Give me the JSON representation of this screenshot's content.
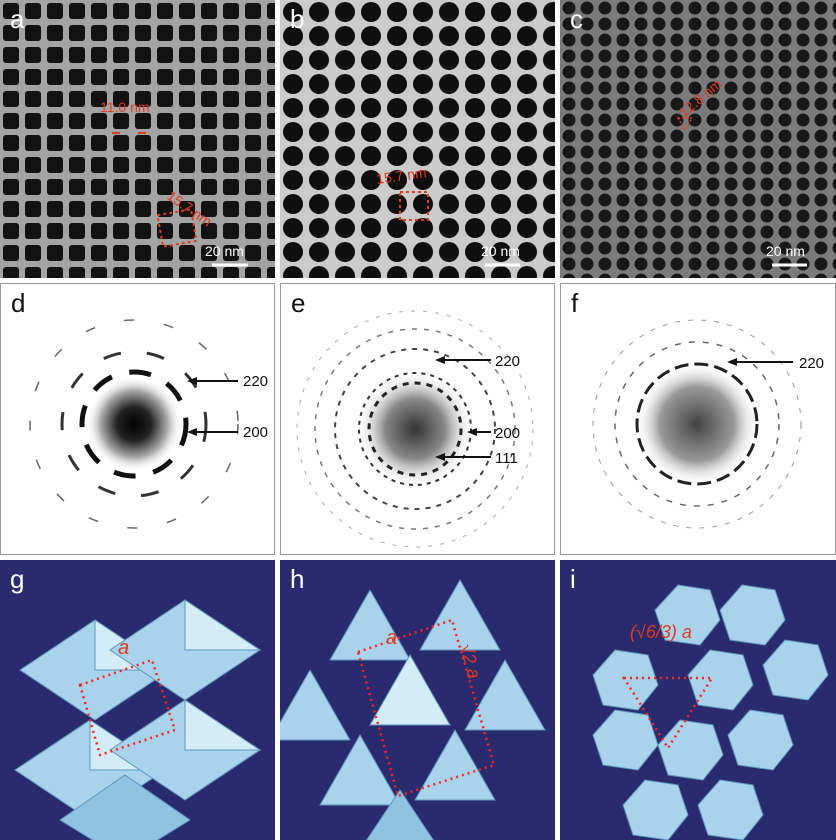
{
  "panels": {
    "a": {
      "label": "a",
      "annotations": [
        "11.0 nm",
        "15.7 nm"
      ],
      "scalebar": "20 nm"
    },
    "b": {
      "label": "b",
      "annotations": [
        "15.7 nm"
      ],
      "scalebar": "20 nm"
    },
    "c": {
      "label": "c",
      "annotations": [
        "12.8 nm"
      ],
      "scalebar": "20 nm"
    },
    "d": {
      "label": "d",
      "rings": [
        "220",
        "200"
      ]
    },
    "e": {
      "label": "e",
      "rings": [
        "220",
        "200",
        "111"
      ]
    },
    "f": {
      "label": "f",
      "rings": [
        "220"
      ]
    },
    "g": {
      "label": "g",
      "param": "a"
    },
    "h": {
      "label": "h",
      "param": "a",
      "param2": "√2 a"
    },
    "i": {
      "label": "i",
      "param": "(√6/3) a"
    }
  },
  "colors": {
    "annotation": "#e2391f",
    "model_bg": "#2a2a6e",
    "crystal": "#a9d3ea",
    "crystal_edge": "#5d97bd"
  }
}
